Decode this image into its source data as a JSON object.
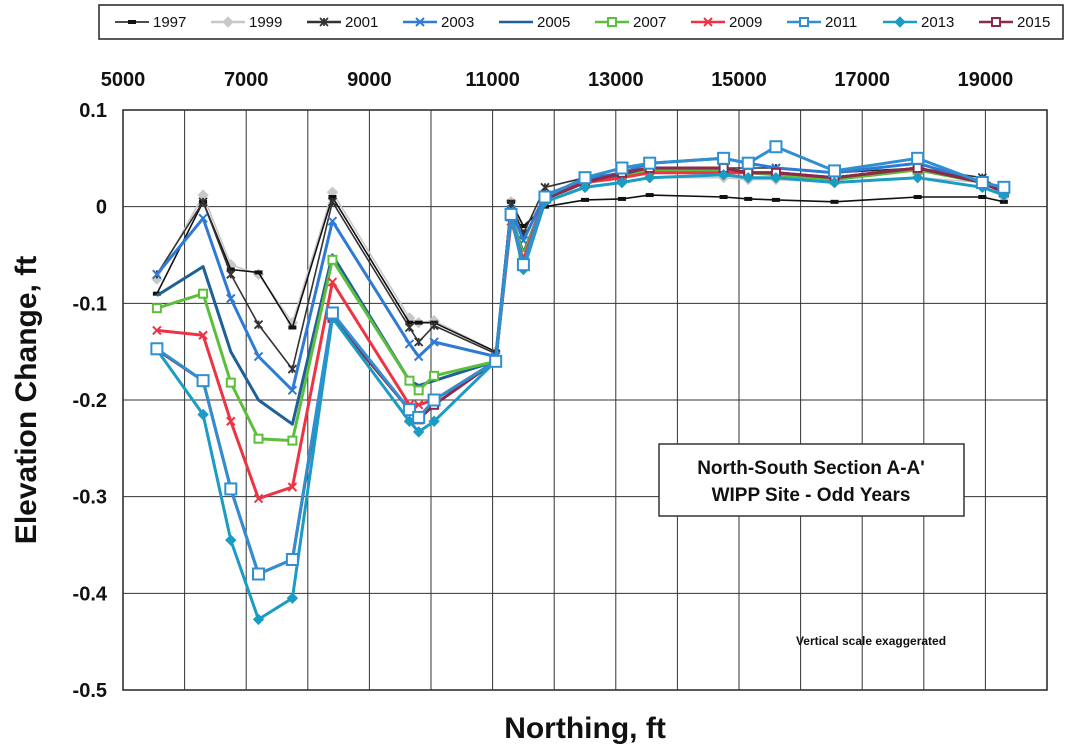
{
  "chart_data": {
    "type": "line",
    "xlabel": "Northing, ft",
    "ylabel": "Elevation Change, ft",
    "xlim": [
      5000,
      20000
    ],
    "ylim": [
      -0.5,
      0.1
    ],
    "x_ticks": [
      "5000",
      "7000",
      "9000",
      "11000",
      "13000",
      "15000",
      "17000",
      "19000"
    ],
    "x_tick_values": [
      5000,
      7000,
      9000,
      11000,
      13000,
      15000,
      17000,
      19000
    ],
    "y_ticks": [
      "0.1",
      "0",
      "-0.1",
      "-0.2",
      "-0.3",
      "-0.4",
      "-0.5"
    ],
    "y_tick_values": [
      0.1,
      0,
      -0.1,
      -0.2,
      -0.3,
      -0.4,
      -0.5
    ],
    "grid": true,
    "legend_position": "top",
    "annotation_box": {
      "line1": "North-South Section A-A'",
      "line2": "WIPP Site - Odd Years"
    },
    "note": "Vertical scale exaggerated",
    "x": [
      5550,
      6300,
      6750,
      7200,
      7750,
      8400,
      9650,
      9800,
      10050,
      11050,
      11300,
      11500,
      11850,
      12500,
      13100,
      13550,
      14750,
      15150,
      15600,
      16550,
      17900,
      18950,
      19300
    ],
    "series": [
      {
        "name": "1997",
        "color": "#111111",
        "marker": "dash",
        "values": [
          -0.09,
          0.005,
          -0.065,
          -0.068,
          -0.125,
          0.01,
          -0.12,
          -0.12,
          -0.12,
          -0.15,
          0.005,
          -0.02,
          0.0,
          0.007,
          0.008,
          0.012,
          0.01,
          0.008,
          0.007,
          0.005,
          0.01,
          0.01,
          0.005
        ]
      },
      {
        "name": "1999",
        "color": "#c8c8c8",
        "marker": "diamond",
        "values": [
          -0.075,
          0.012,
          -0.06,
          -0.07,
          -0.12,
          0.015,
          -0.115,
          -0.12,
          -0.118,
          -0.15,
          0.005,
          -0.025,
          0.01,
          0.02,
          0.025,
          0.03,
          0.03,
          0.028,
          0.028,
          0.025,
          0.03,
          0.025,
          0.01
        ]
      },
      {
        "name": "2001",
        "color": "#333333",
        "marker": "star",
        "values": [
          -0.07,
          0.005,
          -0.07,
          -0.122,
          -0.168,
          0.005,
          -0.125,
          -0.14,
          -0.123,
          -0.152,
          0.003,
          -0.028,
          0.02,
          0.03,
          0.035,
          0.04,
          0.04,
          0.04,
          0.04,
          0.035,
          0.04,
          0.03,
          0.015
        ]
      },
      {
        "name": "2003",
        "color": "#2e7bd6",
        "marker": "x",
        "values": [
          -0.07,
          -0.012,
          -0.095,
          -0.155,
          -0.19,
          -0.015,
          -0.142,
          -0.155,
          -0.14,
          -0.155,
          -0.003,
          -0.035,
          0.012,
          0.028,
          0.035,
          0.045,
          0.05,
          0.045,
          0.04,
          0.035,
          0.045,
          0.025,
          0.018
        ]
      },
      {
        "name": "2005",
        "color": "#1f5f9a",
        "marker": "none",
        "values": [
          -0.092,
          -0.062,
          -0.15,
          -0.2,
          -0.225,
          -0.05,
          -0.18,
          -0.185,
          -0.18,
          -0.16,
          -0.01,
          -0.048,
          0.008,
          0.025,
          0.032,
          0.04,
          0.04,
          0.035,
          0.035,
          0.03,
          0.04,
          0.025,
          0.015
        ]
      },
      {
        "name": "2007",
        "color": "#5cbf3c",
        "marker": "square",
        "values": [
          -0.105,
          -0.09,
          -0.182,
          -0.24,
          -0.242,
          -0.055,
          -0.18,
          -0.19,
          -0.175,
          -0.16,
          -0.01,
          -0.05,
          0.008,
          0.025,
          0.03,
          0.038,
          0.038,
          0.035,
          0.033,
          0.028,
          0.038,
          0.025,
          0.015
        ]
      },
      {
        "name": "2009",
        "color": "#ee3344",
        "marker": "x",
        "values": [
          -0.128,
          -0.133,
          -0.222,
          -0.302,
          -0.29,
          -0.078,
          -0.205,
          -0.205,
          -0.2,
          -0.16,
          -0.015,
          -0.055,
          0.01,
          0.025,
          0.03,
          0.035,
          0.035,
          0.035,
          0.035,
          0.03,
          0.04,
          0.025,
          0.015
        ]
      },
      {
        "name": "2011",
        "color": "#2f8fd0",
        "marker": "square",
        "values": [
          -0.147,
          -0.18,
          -0.292,
          -0.38,
          -0.365,
          -0.11,
          -0.21,
          -0.218,
          -0.2,
          -0.16,
          -0.008,
          -0.06,
          0.01,
          0.03,
          0.04,
          0.045,
          0.05,
          0.045,
          0.062,
          0.037,
          0.05,
          0.025,
          0.02
        ]
      },
      {
        "name": "2013",
        "color": "#1a9cc4",
        "marker": "diamond",
        "values": [
          -0.148,
          -0.215,
          -0.345,
          -0.427,
          -0.405,
          -0.115,
          -0.222,
          -0.233,
          -0.222,
          -0.16,
          -0.01,
          -0.065,
          0.005,
          0.02,
          0.025,
          0.03,
          0.033,
          0.03,
          0.03,
          0.025,
          0.03,
          0.02,
          0.012
        ]
      },
      {
        "name": "2015",
        "color": "#8b2a4a",
        "marker": "square",
        "values": [
          -0.148,
          -0.18,
          -0.292,
          -0.38,
          -0.365,
          -0.115,
          -0.21,
          -0.22,
          -0.205,
          -0.16,
          -0.01,
          -0.06,
          0.008,
          0.025,
          0.035,
          0.04,
          0.04,
          0.035,
          0.035,
          0.03,
          0.04,
          0.025,
          0.015
        ]
      }
    ]
  }
}
